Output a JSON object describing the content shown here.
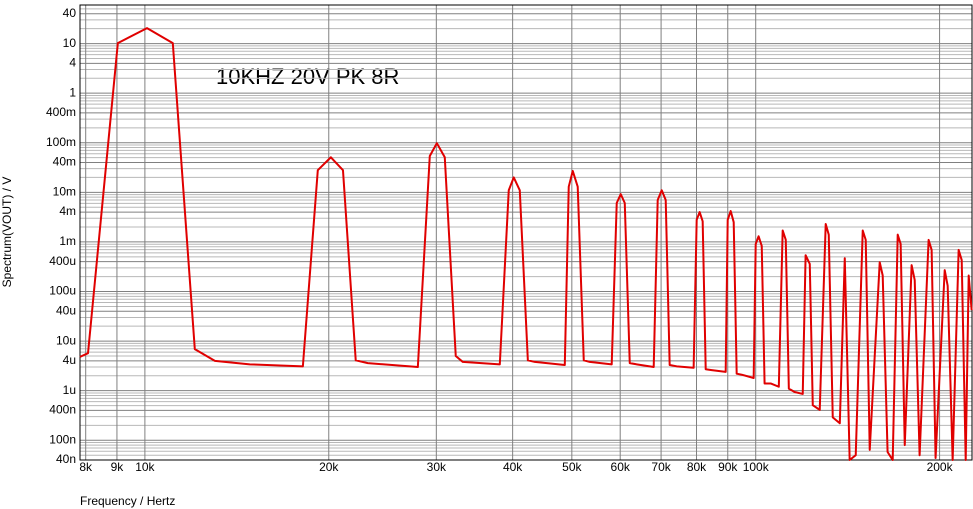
{
  "chart_data": {
    "type": "line",
    "annotation": "10KHZ 20V PK 8R",
    "xlabel": "Frequency / Hertz",
    "ylabel": "Spectrum(VOUT) / V",
    "xscale": "log",
    "yscale": "log",
    "grid": true,
    "xlim": [
      7830,
      226000
    ],
    "ylim": [
      4e-08,
      60
    ],
    "xticks": [
      {
        "value": 8000,
        "label": "8k"
      },
      {
        "value": 9000,
        "label": "9k"
      },
      {
        "value": 10000,
        "label": "10k"
      },
      {
        "value": 20000,
        "label": "20k"
      },
      {
        "value": 30000,
        "label": "30k"
      },
      {
        "value": 40000,
        "label": "40k"
      },
      {
        "value": 50000,
        "label": "50k"
      },
      {
        "value": 60000,
        "label": "60k"
      },
      {
        "value": 70000,
        "label": "70k"
      },
      {
        "value": 80000,
        "label": "80k"
      },
      {
        "value": 90000,
        "label": "90k"
      },
      {
        "value": 100000,
        "label": "100k"
      },
      {
        "value": 200000,
        "label": "200k"
      }
    ],
    "yticks": [
      40,
      10,
      4,
      1,
      {
        "value": 0.4,
        "label": "400m"
      },
      {
        "value": 0.1,
        "label": "100m"
      },
      {
        "value": 0.04,
        "label": "40m"
      },
      {
        "value": 0.01,
        "label": "10m"
      },
      {
        "value": 0.004,
        "label": "4m"
      },
      {
        "value": 0.001,
        "label": "1m"
      },
      {
        "value": 0.0004,
        "label": "400u"
      },
      {
        "value": 0.0001,
        "label": "100u"
      },
      {
        "value": 4e-05,
        "label": "40u"
      },
      {
        "value": 1e-05,
        "label": "10u"
      },
      {
        "value": 4e-06,
        "label": "4u"
      },
      {
        "value": 1e-06,
        "label": "1u"
      },
      {
        "value": 4e-07,
        "label": "400n"
      },
      {
        "value": 1e-07,
        "label": "100n"
      },
      {
        "value": 4e-08,
        "label": "40n"
      }
    ],
    "x": [
      7830,
      8070,
      9030,
      10080,
      11110,
      12070,
      13020,
      14850,
      18140,
      19190,
      20160,
      21100,
      22140,
      23170,
      27980,
      29270,
      30060,
      30970,
      32280,
      33150,
      38110,
      39420,
      40170,
      41090,
      42360,
      43490,
      48690,
      49420,
      50170,
      51120,
      52300,
      53490,
      58110,
      59220,
      60120,
      61040,
      62200,
      63860,
      68080,
      69110,
      70170,
      71230,
      72300,
      74240,
      79140,
      80050,
      80950,
      81880,
      82820,
      84720,
      89300,
      89980,
      91000,
      92040,
      93080,
      94870,
      99240,
      100000,
      101100,
      102300,
      103400,
      105800,
      109100,
      110700,
      112000,
      113300,
      115800,
      119400,
      120700,
      122600,
      124000,
      127300,
      130200,
      131700,
      133700,
      137300,
      139900,
      142500,
      145800,
      149700,
      151400,
      153700,
      159600,
      161400,
      164400,
      167600,
      170800,
      172700,
      175400,
      180000,
      182100,
      185500,
      191900,
      194100,
      197000,
      203900,
      206200,
      210100,
      214900,
      217400,
      220700,
      223200,
      225700
    ],
    "series": [
      {
        "color": "#e00000",
        "values": [
          4.8e-06,
          5.7e-06,
          10.2,
          20.5,
          10.2,
          6.9e-06,
          4e-06,
          3.4e-06,
          3.1e-06,
          0.028,
          0.051,
          0.028,
          4.1e-06,
          3.6e-06,
          3e-06,
          0.054,
          0.098,
          0.051,
          5e-06,
          3.8e-06,
          3.4e-06,
          0.011,
          0.02,
          0.011,
          4.1e-06,
          3.8e-06,
          3.3e-06,
          0.013,
          0.027,
          0.013,
          4.1e-06,
          3.8e-06,
          3.4e-06,
          0.0061,
          0.0092,
          0.0061,
          3.6e-06,
          3.4e-06,
          3e-06,
          0.007,
          0.011,
          0.007,
          3.3e-06,
          3.1e-06,
          2.9e-06,
          0.0028,
          0.004,
          0.0026,
          2.7e-06,
          2.6e-06,
          2.4e-06,
          0.0028,
          0.0042,
          0.0025,
          2.2e-06,
          2.1e-06,
          1.8e-06,
          0.00091,
          0.0013,
          0.00083,
          1.4e-06,
          1.4e-06,
          1.2e-06,
          0.0017,
          0.0011,
          1.1e-06,
          9.4e-07,
          8.6e-07,
          0.00054,
          0.00036,
          5.1e-07,
          4.1e-07,
          0.0023,
          0.0014,
          2.9e-07,
          2.2e-07,
          0.00047,
          4e-08,
          5e-08,
          0.0017,
          0.0011,
          6.4e-08,
          0.00039,
          0.00021,
          5.8e-08,
          4e-08,
          0.0014,
          0.00091,
          8e-08,
          0.00034,
          0.00017,
          5e-08,
          0.0011,
          0.00069,
          4.4e-08,
          0.00027,
          0.00013,
          4e-08,
          0.00069,
          0.00043,
          4e-08,
          0.00021,
          4.2e-05
        ]
      }
    ]
  }
}
